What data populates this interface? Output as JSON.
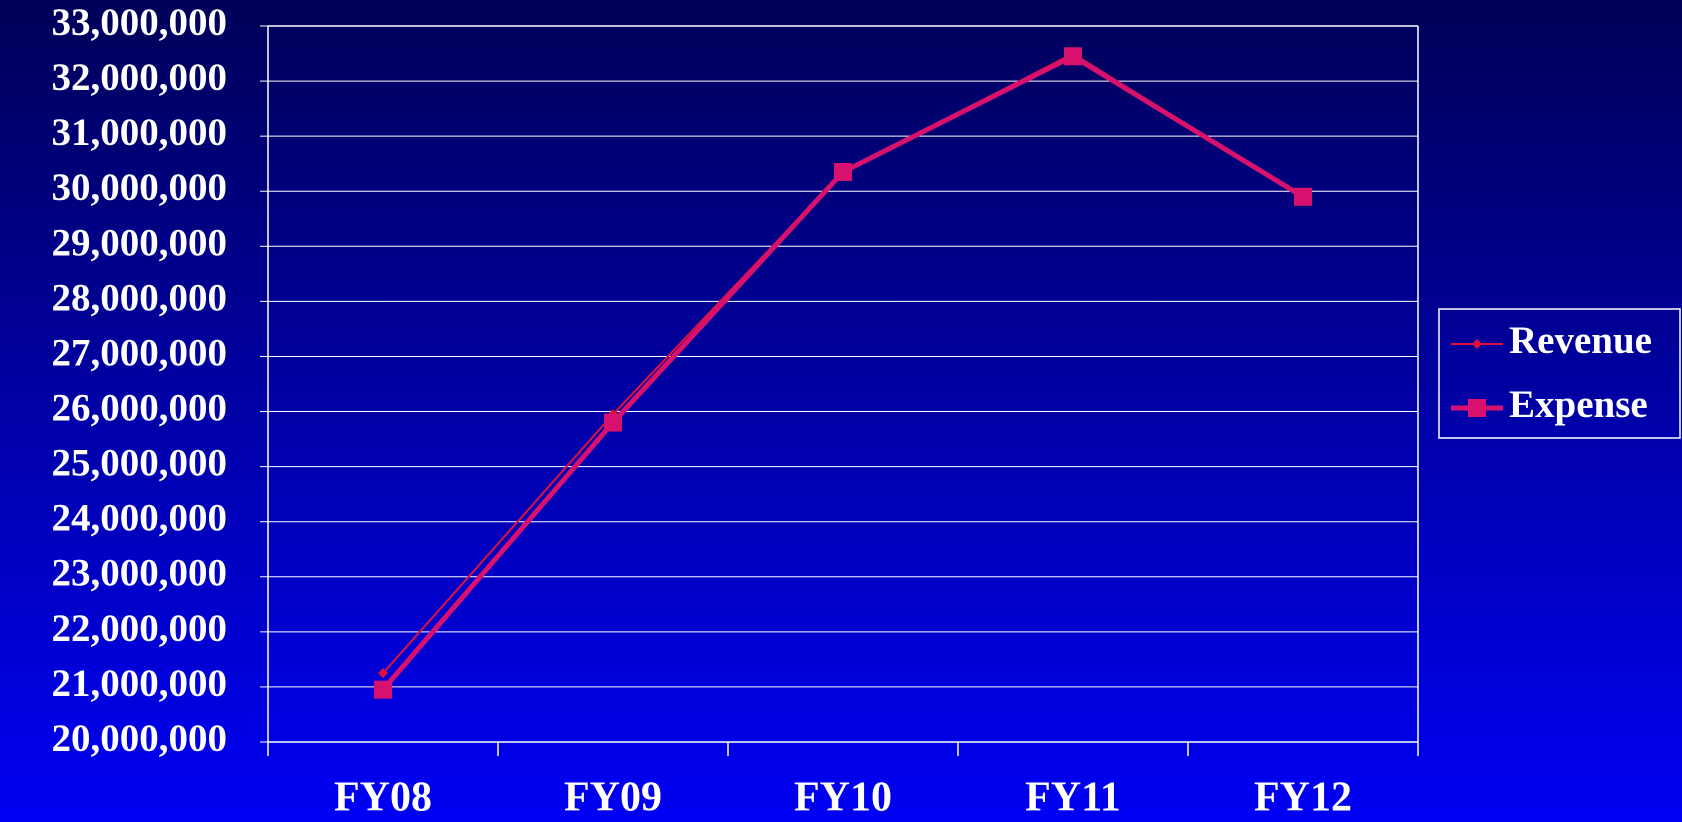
{
  "chart_data": {
    "type": "line",
    "categories": [
      "FY08",
      "FY09",
      "FY10",
      "FY11",
      "FY12"
    ],
    "series": [
      {
        "name": "Revenue",
        "color": "#e0103c",
        "marker": "diamond",
        "values": [
          21250000,
          25950000,
          30350000,
          32500000,
          29900000
        ]
      },
      {
        "name": "Expense",
        "color": "#d8106e",
        "marker": "square",
        "values": [
          20950000,
          25800000,
          30350000,
          32450000,
          29900000
        ]
      }
    ],
    "ylim": [
      20000000,
      33000000
    ],
    "yticks": [
      {
        "value": 20000000,
        "label": "20,000,000"
      },
      {
        "value": 21000000,
        "label": "21,000,000"
      },
      {
        "value": 22000000,
        "label": "22,000,000"
      },
      {
        "value": 23000000,
        "label": "23,000,000"
      },
      {
        "value": 24000000,
        "label": "24,000,000"
      },
      {
        "value": 25000000,
        "label": "25,000,000"
      },
      {
        "value": 26000000,
        "label": "26,000,000"
      },
      {
        "value": 27000000,
        "label": "27,000,000"
      },
      {
        "value": 28000000,
        "label": "28,000,000"
      },
      {
        "value": 29000000,
        "label": "29,000,000"
      },
      {
        "value": 30000000,
        "label": "30,000,000"
      },
      {
        "value": 31000000,
        "label": "31,000,000"
      },
      {
        "value": 32000000,
        "label": "32,000,000"
      },
      {
        "value": 33000000,
        "label": "33,000,000"
      }
    ],
    "grid": true,
    "legend": "right"
  }
}
